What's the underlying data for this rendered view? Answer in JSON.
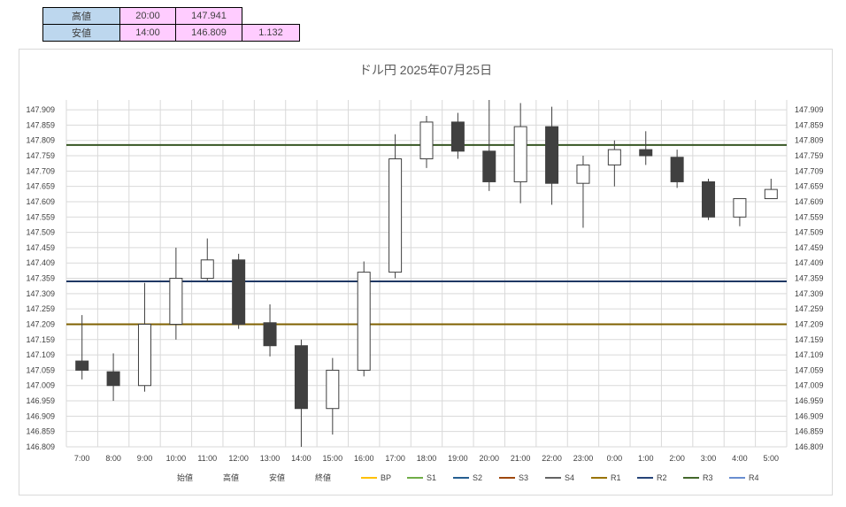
{
  "summary": {
    "high": {
      "label": "高値",
      "time": "20:00",
      "price": "147.941"
    },
    "low": {
      "label": "安値",
      "time": "14:00",
      "price": "146.809",
      "range": "1.132"
    }
  },
  "chart_data": {
    "type": "candlestick",
    "title": "ドル円  2025年07月25日",
    "ylim": [
      146.809,
      147.941
    ],
    "y_ticks": [
      "147.909",
      "147.859",
      "147.809",
      "147.759",
      "147.709",
      "147.659",
      "147.609",
      "147.559",
      "147.509",
      "147.459",
      "147.409",
      "147.359",
      "147.309",
      "147.259",
      "147.209",
      "147.159",
      "147.109",
      "147.059",
      "147.009",
      "146.959",
      "146.909",
      "146.859",
      "146.809"
    ],
    "grid": true,
    "categories": [
      "7:00",
      "8:00",
      "9:00",
      "10:00",
      "11:00",
      "12:00",
      "13:00",
      "14:00",
      "15:00",
      "16:00",
      "17:00",
      "18:00",
      "19:00",
      "20:00",
      "21:00",
      "22:00",
      "23:00",
      "0:00",
      "1:00",
      "2:00",
      "3:00",
      "4:00",
      "5:00"
    ],
    "open": [
      147.089,
      147.054,
      147.009,
      147.209,
      147.359,
      147.419,
      147.214,
      147.139,
      146.934,
      147.059,
      147.379,
      147.749,
      147.869,
      147.774,
      147.674,
      147.854,
      147.669,
      147.729,
      147.779,
      147.754,
      147.674,
      147.559,
      147.619
    ],
    "high": [
      147.239,
      147.114,
      147.344,
      147.459,
      147.489,
      147.439,
      147.274,
      147.159,
      147.099,
      147.414,
      147.829,
      147.889,
      147.899,
      147.941,
      147.931,
      147.919,
      147.759,
      147.809,
      147.839,
      147.779,
      147.684,
      147.619,
      147.684
    ],
    "low": [
      147.029,
      146.959,
      146.989,
      147.159,
      147.349,
      147.194,
      147.104,
      146.809,
      146.849,
      147.039,
      147.359,
      147.719,
      147.749,
      147.644,
      147.604,
      147.599,
      147.524,
      147.659,
      147.729,
      147.654,
      147.549,
      147.529,
      147.619
    ],
    "close": [
      147.059,
      147.009,
      147.209,
      147.359,
      147.419,
      147.209,
      147.139,
      146.934,
      147.059,
      147.379,
      147.749,
      147.869,
      147.774,
      147.674,
      147.854,
      147.669,
      147.729,
      147.779,
      147.759,
      147.674,
      147.559,
      147.619,
      147.649
    ],
    "lines": [
      {
        "name": "R3",
        "value": 147.794,
        "color": "#375623"
      },
      {
        "name": "R2",
        "value": 147.349,
        "color": "#1f3864"
      },
      {
        "name": "R1",
        "value": 147.209,
        "color": "#7f6000"
      }
    ],
    "legend": [
      {
        "name": "始値",
        "color": "",
        "kind": "none"
      },
      {
        "name": "高値",
        "color": "",
        "kind": "none"
      },
      {
        "name": "安値",
        "color": "",
        "kind": "none"
      },
      {
        "name": "終値",
        "color": "",
        "kind": "none"
      },
      {
        "name": "BP",
        "color": "#ffc000",
        "kind": "line"
      },
      {
        "name": "S1",
        "color": "#70ad47",
        "kind": "line"
      },
      {
        "name": "S2",
        "color": "#255e91",
        "kind": "line"
      },
      {
        "name": "S3",
        "color": "#9e480e",
        "kind": "line"
      },
      {
        "name": "S4",
        "color": "#636363",
        "kind": "line"
      },
      {
        "name": "R1",
        "color": "#997300",
        "kind": "line"
      },
      {
        "name": "R2",
        "color": "#264478",
        "kind": "line"
      },
      {
        "name": "R3",
        "color": "#43682b",
        "kind": "line"
      },
      {
        "name": "R4",
        "color": "#698ed0",
        "kind": "line"
      }
    ],
    "up_color": "#ffffff",
    "down_color": "#404040",
    "legend_position": "bottom"
  }
}
